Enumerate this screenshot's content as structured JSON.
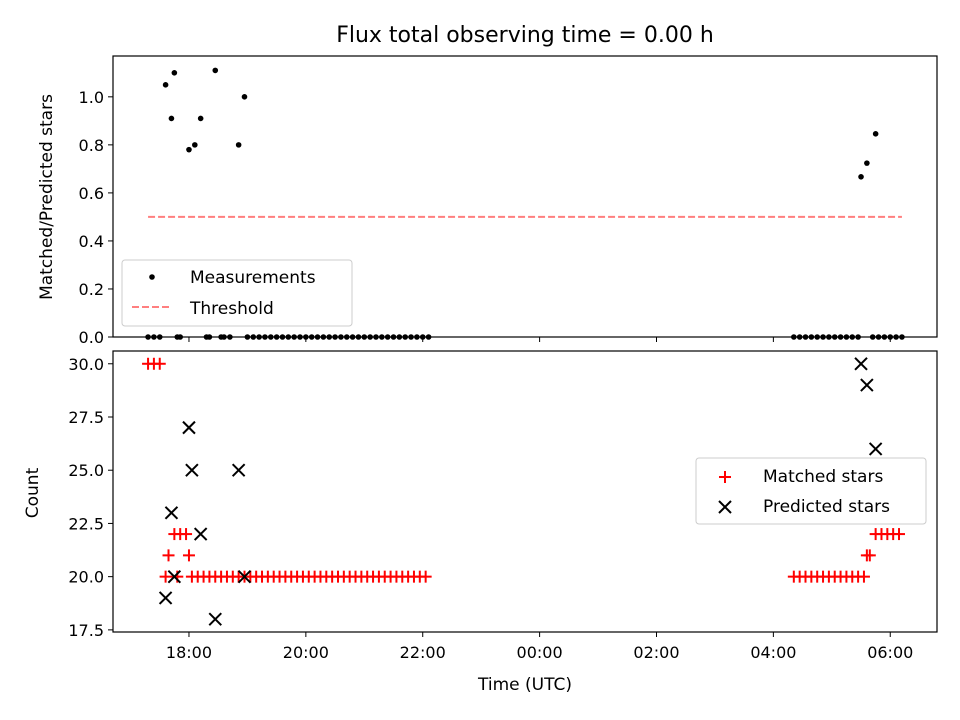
{
  "chart_data": [
    {
      "type": "scatter",
      "title": "Flux total observing time = 0.00 h",
      "xlabel": "",
      "ylabel": "Matched/Predicted stars",
      "xlim": [
        16.7,
        30.8
      ],
      "ylim": [
        0,
        1.17
      ],
      "yticks": [
        0.0,
        0.2,
        0.4,
        0.6,
        0.8,
        1.0
      ],
      "ytick_labels": [
        "0.0",
        "0.2",
        "0.4",
        "0.6",
        "0.8",
        "1.0"
      ],
      "legend_position": "lower-left",
      "series": [
        {
          "name": "Measurements",
          "marker": "dot",
          "color": "#000000",
          "x": [
            17.3,
            17.4,
            17.5,
            17.6,
            17.7,
            17.75,
            17.8,
            17.85,
            18.0,
            18.1,
            18.2,
            18.3,
            18.35,
            18.45,
            18.55,
            18.6,
            18.7,
            18.85,
            18.95,
            19.0,
            19.1,
            19.2,
            19.3,
            19.4,
            19.5,
            19.6,
            19.7,
            19.8,
            19.9,
            20.0,
            20.1,
            20.2,
            20.3,
            20.4,
            20.5,
            20.6,
            20.7,
            20.8,
            20.9,
            21.0,
            21.1,
            21.2,
            21.3,
            21.4,
            21.5,
            21.6,
            21.7,
            21.8,
            21.9,
            22.0,
            22.1,
            28.35,
            28.45,
            28.55,
            28.65,
            28.75,
            28.85,
            28.95,
            29.05,
            29.15,
            29.25,
            29.35,
            29.45,
            29.5,
            29.6,
            29.7,
            29.75,
            29.8,
            29.9,
            30.0,
            30.1,
            30.2
          ],
          "y": [
            0,
            0,
            0,
            1.05,
            0.91,
            1.1,
            0,
            0,
            0.78,
            0.8,
            0.91,
            0,
            0,
            1.11,
            0,
            0,
            0,
            0.8,
            1.0,
            0,
            0,
            0,
            0,
            0,
            0,
            0,
            0,
            0,
            0,
            0,
            0,
            0,
            0,
            0,
            0,
            0,
            0,
            0,
            0,
            0,
            0,
            0,
            0,
            0,
            0,
            0,
            0,
            0,
            0,
            0,
            0,
            0,
            0,
            0,
            0,
            0,
            0,
            0,
            0,
            0,
            0,
            0,
            0,
            0.667,
            0.724,
            0,
            0.846,
            0,
            0,
            0,
            0,
            0
          ]
        },
        {
          "name": "Threshold",
          "style": "dashed",
          "color": "#ff7f7f",
          "x": [
            17.3,
            30.2
          ],
          "y": [
            0.5,
            0.5
          ]
        }
      ]
    },
    {
      "type": "scatter",
      "title": "",
      "xlabel": "Time (UTC)",
      "ylabel": "Count",
      "xlim": [
        16.7,
        30.8
      ],
      "ylim": [
        17.4,
        30.6
      ],
      "xticks": [
        18,
        20,
        22,
        24,
        26,
        28,
        30
      ],
      "xtick_labels": [
        "18:00",
        "20:00",
        "22:00",
        "00:00",
        "02:00",
        "04:00",
        "06:00"
      ],
      "yticks": [
        17.5,
        20.0,
        22.5,
        25.0,
        27.5,
        30.0
      ],
      "ytick_labels": [
        "17.5",
        "20.0",
        "22.5",
        "25.0",
        "27.5",
        "30.0"
      ],
      "legend_position": "center-right",
      "series": [
        {
          "name": "Matched stars",
          "marker": "plus",
          "color": "#ff0000",
          "x": [
            17.3,
            17.4,
            17.5,
            17.6,
            17.65,
            17.75,
            17.8,
            17.85,
            17.95,
            18.0,
            18.05,
            18.15,
            18.25,
            18.35,
            18.45,
            18.55,
            18.65,
            18.75,
            18.85,
            18.95,
            19.05,
            19.15,
            19.25,
            19.35,
            19.45,
            19.55,
            19.65,
            19.75,
            19.85,
            19.95,
            20.05,
            20.15,
            20.25,
            20.35,
            20.45,
            20.55,
            20.65,
            20.75,
            20.85,
            20.95,
            21.05,
            21.15,
            21.25,
            21.35,
            21.45,
            21.55,
            21.65,
            21.75,
            21.85,
            21.95,
            22.05,
            28.35,
            28.45,
            28.55,
            28.65,
            28.75,
            28.85,
            28.95,
            29.05,
            29.15,
            29.25,
            29.35,
            29.45,
            29.55,
            29.6,
            29.65,
            29.75,
            29.85,
            29.95,
            30.05,
            30.15
          ],
          "y": [
            30,
            30,
            30,
            20,
            21,
            22,
            20,
            22,
            22,
            21,
            20,
            20,
            20,
            20,
            20,
            20,
            20,
            20,
            20,
            20,
            20,
            20,
            20,
            20,
            20,
            20,
            20,
            20,
            20,
            20,
            20,
            20,
            20,
            20,
            20,
            20,
            20,
            20,
            20,
            20,
            20,
            20,
            20,
            20,
            20,
            20,
            20,
            20,
            20,
            20,
            20,
            20,
            20,
            20,
            20,
            20,
            20,
            20,
            20,
            20,
            20,
            20,
            20,
            20,
            21,
            21,
            22,
            22,
            22,
            22,
            22
          ]
        },
        {
          "name": "Predicted stars",
          "marker": "x",
          "color": "#000000",
          "x": [
            17.6,
            17.7,
            17.75,
            18.0,
            18.05,
            18.2,
            18.45,
            18.85,
            18.95,
            29.5,
            29.6,
            29.75
          ],
          "y": [
            19,
            23,
            20,
            27,
            25,
            22,
            18,
            25,
            20,
            30,
            29,
            26
          ]
        }
      ]
    }
  ]
}
